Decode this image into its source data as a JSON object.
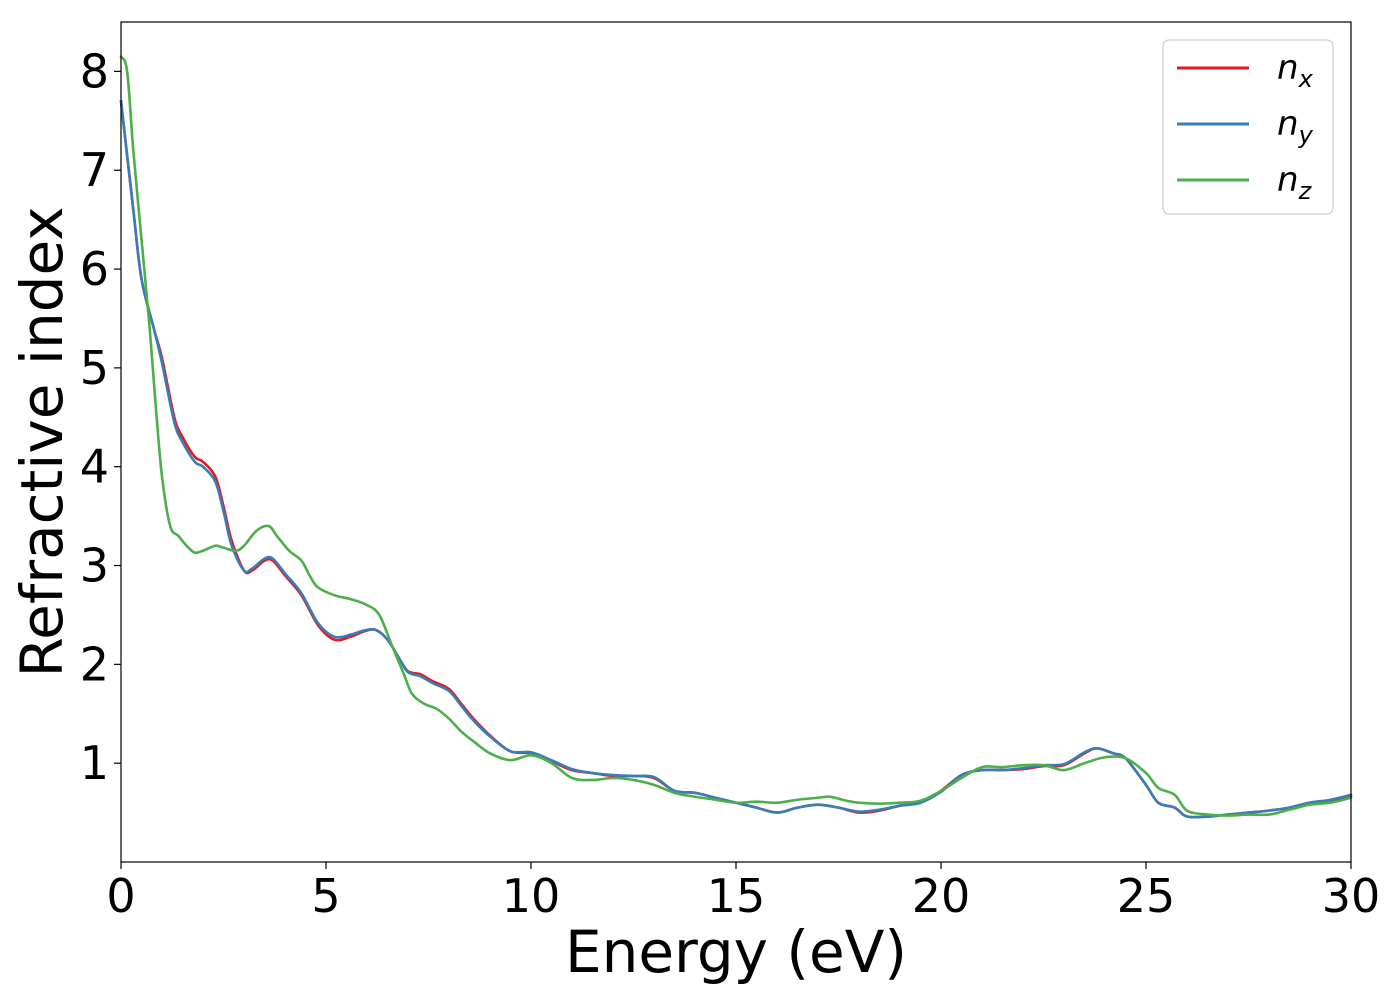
{
  "chart_data": {
    "type": "line",
    "title": "",
    "xlabel": "Energy (eV)",
    "ylabel": "Refractive index",
    "xlim": [
      0,
      30
    ],
    "ylim": [
      0,
      8.5
    ],
    "xticks": [
      0,
      5,
      10,
      15,
      20,
      25,
      30
    ],
    "yticks": [
      1,
      2,
      3,
      4,
      5,
      6,
      7,
      8
    ],
    "xtick_labels": [
      "0",
      "5",
      "10",
      "15",
      "20",
      "25",
      "30"
    ],
    "ytick_labels": [
      "1",
      "2",
      "3",
      "4",
      "5",
      "6",
      "7",
      "8"
    ],
    "grid": false,
    "legend_position": "top-right",
    "series": [
      {
        "name": "n_x",
        "legend_base": "n",
        "legend_sub": "x",
        "color": "#e41a1c",
        "x": [
          0,
          0.3,
          0.5,
          0.8,
          1.0,
          1.3,
          1.5,
          1.8,
          2.0,
          2.3,
          2.5,
          2.7,
          3.0,
          3.2,
          3.5,
          3.7,
          4.0,
          4.4,
          4.8,
          5.2,
          5.6,
          5.9,
          6.2,
          6.5,
          6.8,
          7.0,
          7.3,
          7.6,
          8.0,
          8.3,
          8.6,
          9.0,
          9.5,
          10.0,
          10.5,
          11.0,
          11.5,
          12.0,
          12.5,
          13.0,
          13.5,
          14.0,
          14.5,
          15.0,
          15.5,
          16.0,
          16.5,
          17.0,
          17.5,
          18.0,
          18.5,
          19.0,
          19.5,
          20.0,
          20.5,
          21.0,
          21.5,
          22.0,
          22.5,
          23.0,
          23.5,
          23.8,
          24.2,
          24.5,
          25.0,
          25.3,
          25.7,
          26.0,
          26.5,
          27.0,
          27.5,
          28.0,
          28.5,
          29.0,
          29.5,
          30.0
        ],
        "y": [
          7.7,
          6.6,
          5.9,
          5.4,
          5.1,
          4.5,
          4.3,
          4.1,
          4.05,
          3.9,
          3.6,
          3.25,
          2.95,
          2.95,
          3.05,
          3.05,
          2.9,
          2.7,
          2.4,
          2.25,
          2.28,
          2.33,
          2.35,
          2.25,
          2.05,
          1.93,
          1.9,
          1.83,
          1.75,
          1.6,
          1.45,
          1.28,
          1.12,
          1.1,
          1.02,
          0.93,
          0.9,
          0.87,
          0.87,
          0.85,
          0.72,
          0.7,
          0.65,
          0.6,
          0.55,
          0.5,
          0.55,
          0.58,
          0.55,
          0.5,
          0.52,
          0.57,
          0.6,
          0.72,
          0.88,
          0.93,
          0.93,
          0.94,
          0.97,
          0.98,
          1.1,
          1.15,
          1.1,
          1.05,
          0.78,
          0.6,
          0.55,
          0.46,
          0.46,
          0.48,
          0.5,
          0.52,
          0.55,
          0.6,
          0.62,
          0.67
        ]
      },
      {
        "name": "n_y",
        "legend_base": "n",
        "legend_sub": "y",
        "color": "#377eb8",
        "x": [
          0,
          0.3,
          0.5,
          0.8,
          1.0,
          1.3,
          1.5,
          1.8,
          2.0,
          2.3,
          2.5,
          2.7,
          3.0,
          3.2,
          3.5,
          3.7,
          4.0,
          4.4,
          4.8,
          5.2,
          5.6,
          5.9,
          6.2,
          6.5,
          6.8,
          7.0,
          7.3,
          7.6,
          8.0,
          8.3,
          8.6,
          9.0,
          9.5,
          10.0,
          10.5,
          11.0,
          11.5,
          12.0,
          12.5,
          13.0,
          13.5,
          14.0,
          14.5,
          15.0,
          15.5,
          16.0,
          16.5,
          17.0,
          17.5,
          18.0,
          18.5,
          19.0,
          19.5,
          20.0,
          20.5,
          21.0,
          21.5,
          22.0,
          22.5,
          23.0,
          23.5,
          23.8,
          24.2,
          24.5,
          25.0,
          25.3,
          25.7,
          26.0,
          26.5,
          27.0,
          27.5,
          28.0,
          28.5,
          29.0,
          29.5,
          30.0
        ],
        "y": [
          7.7,
          6.6,
          5.9,
          5.4,
          5.05,
          4.45,
          4.25,
          4.05,
          4.0,
          3.85,
          3.55,
          3.2,
          2.95,
          2.97,
          3.07,
          3.07,
          2.92,
          2.72,
          2.42,
          2.28,
          2.3,
          2.34,
          2.35,
          2.25,
          2.05,
          1.92,
          1.88,
          1.81,
          1.73,
          1.58,
          1.43,
          1.27,
          1.12,
          1.11,
          1.03,
          0.94,
          0.9,
          0.88,
          0.87,
          0.86,
          0.72,
          0.7,
          0.65,
          0.6,
          0.55,
          0.5,
          0.55,
          0.58,
          0.55,
          0.51,
          0.53,
          0.57,
          0.6,
          0.71,
          0.88,
          0.93,
          0.93,
          0.95,
          0.98,
          0.99,
          1.11,
          1.15,
          1.1,
          1.05,
          0.78,
          0.6,
          0.55,
          0.46,
          0.46,
          0.48,
          0.5,
          0.52,
          0.55,
          0.6,
          0.63,
          0.68
        ]
      },
      {
        "name": "n_z",
        "legend_base": "n",
        "legend_sub": "z",
        "color": "#4daf4a",
        "x": [
          0,
          0.15,
          0.3,
          0.5,
          0.7,
          0.85,
          1.0,
          1.2,
          1.4,
          1.6,
          1.8,
          2.0,
          2.3,
          2.5,
          2.8,
          3.0,
          3.3,
          3.6,
          3.8,
          4.1,
          4.4,
          4.6,
          4.8,
          5.2,
          5.6,
          6.0,
          6.3,
          6.6,
          6.9,
          7.1,
          7.4,
          7.7,
          8.0,
          8.3,
          8.6,
          9.0,
          9.5,
          10.0,
          10.5,
          11.0,
          11.5,
          12.0,
          12.5,
          13.0,
          13.5,
          14.0,
          14.5,
          15.0,
          15.5,
          16.0,
          16.5,
          17.0,
          17.3,
          17.7,
          18.0,
          18.5,
          19.0,
          19.5,
          20.0,
          20.5,
          21.0,
          21.5,
          22.0,
          22.5,
          23.0,
          23.5,
          24.0,
          24.5,
          25.0,
          25.3,
          25.7,
          26.0,
          26.5,
          27.0,
          27.5,
          28.0,
          28.5,
          29.0,
          29.5,
          30.0
        ],
        "y": [
          8.15,
          8.0,
          7.2,
          6.3,
          5.4,
          4.6,
          3.9,
          3.4,
          3.3,
          3.2,
          3.13,
          3.15,
          3.2,
          3.18,
          3.15,
          3.2,
          3.35,
          3.4,
          3.3,
          3.15,
          3.05,
          2.9,
          2.78,
          2.7,
          2.66,
          2.6,
          2.5,
          2.2,
          1.9,
          1.7,
          1.6,
          1.55,
          1.45,
          1.32,
          1.22,
          1.1,
          1.03,
          1.08,
          1.0,
          0.85,
          0.83,
          0.85,
          0.83,
          0.78,
          0.7,
          0.66,
          0.63,
          0.6,
          0.61,
          0.6,
          0.63,
          0.65,
          0.66,
          0.62,
          0.6,
          0.59,
          0.6,
          0.62,
          0.72,
          0.85,
          0.96,
          0.96,
          0.98,
          0.98,
          0.93,
          1.0,
          1.06,
          1.05,
          0.9,
          0.75,
          0.68,
          0.52,
          0.48,
          0.47,
          0.48,
          0.48,
          0.53,
          0.58,
          0.6,
          0.65
        ]
      }
    ]
  }
}
